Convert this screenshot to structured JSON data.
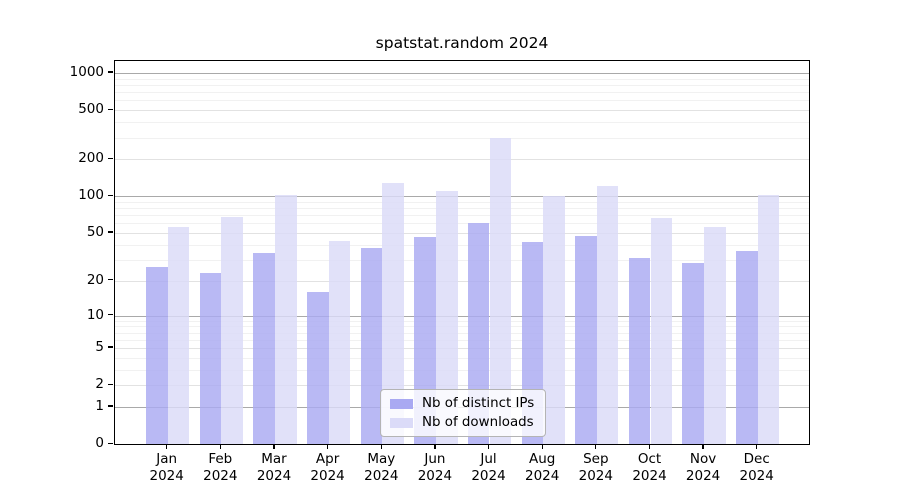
{
  "chart_data": {
    "type": "bar",
    "title": "spatstat.random 2024",
    "scale": "log1p",
    "categories": [
      "Jan 2024",
      "Feb 2024",
      "Mar 2024",
      "Apr 2024",
      "May 2024",
      "Jun 2024",
      "Jul 2024",
      "Aug 2024",
      "Sep 2024",
      "Oct 2024",
      "Nov 2024",
      "Dec 2024"
    ],
    "series": [
      {
        "name": "Nb of distinct IPs",
        "color": "#a9a9f2",
        "values": [
          26,
          23,
          34,
          16,
          37,
          46,
          60,
          42,
          47,
          31,
          28,
          35
        ]
      },
      {
        "name": "Nb of downloads",
        "color": "#dbdbf8",
        "values": [
          56,
          67,
          101,
          43,
          128,
          109,
          295,
          100,
          121,
          66,
          56,
          101
        ]
      }
    ],
    "xlabel": "",
    "ylabel": "",
    "y_ticks": [
      0,
      1,
      2,
      5,
      10,
      20,
      50,
      100,
      200,
      500,
      1000
    ],
    "ylim": [
      0,
      1270
    ],
    "grid": "both",
    "legend_position": "bottom-center-inside"
  },
  "colors": {
    "grid_major": "#a9a9a9",
    "grid_mid": "#e2e2e2",
    "grid_minor": "#f1f1f1",
    "axis": "#000000",
    "background": "#ffffff"
  }
}
